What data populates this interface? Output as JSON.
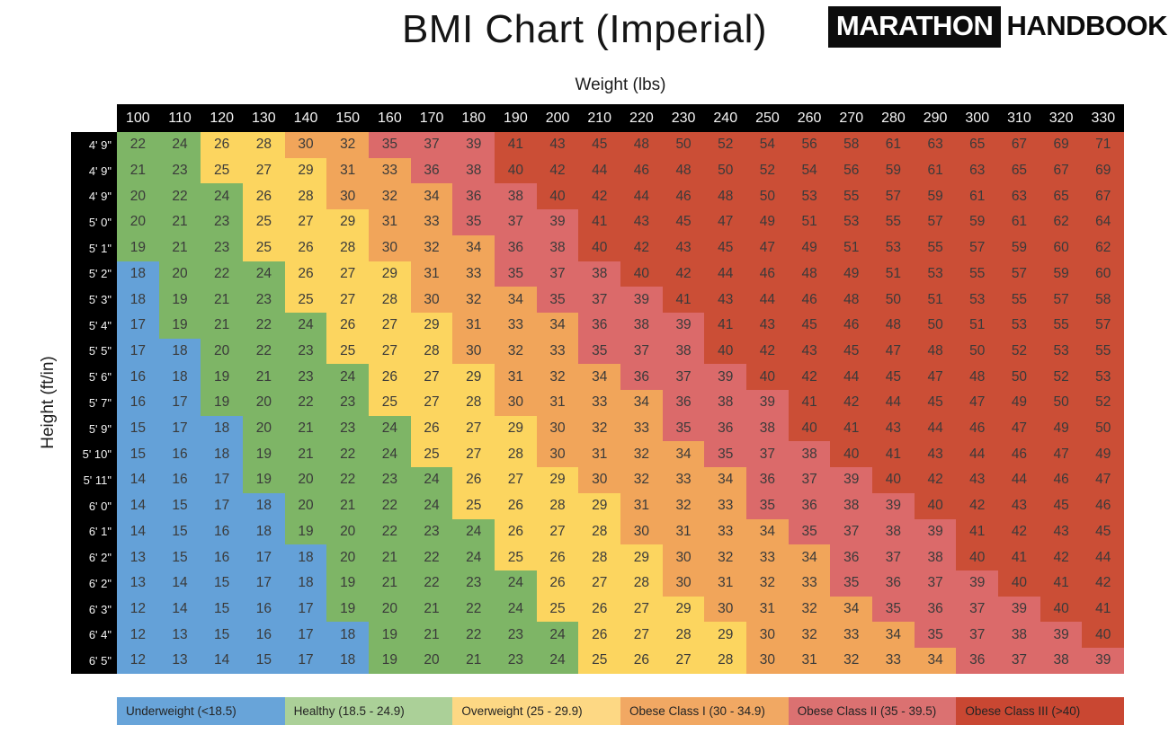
{
  "title": "BMI Chart (Imperial)",
  "logo": {
    "primary": "MARATHON",
    "secondary": "HANDBOOK"
  },
  "chart_data": {
    "type": "heatmap",
    "title": "BMI Chart (Imperial)",
    "xlabel": "Weight (lbs)",
    "ylabel": "Height (ft/in)",
    "weights_lbs": [
      100,
      110,
      120,
      130,
      140,
      150,
      160,
      170,
      180,
      190,
      200,
      210,
      220,
      230,
      240,
      250,
      260,
      270,
      280,
      290,
      300,
      310,
      320,
      330
    ],
    "heights": [
      "4' 9\"",
      "4' 9\"",
      "4' 9\"",
      "5' 0\"",
      "5' 1\"",
      "5' 2\"",
      "5' 3\"",
      "5' 4\"",
      "5' 5\"",
      "5' 6\"",
      "5' 7\"",
      "5' 9\"",
      "5' 10\"",
      "5' 11\"",
      "6' 0\"",
      "6' 1\"",
      "6' 2\"",
      "6' 2\"",
      "6' 3\"",
      "6' 4\"",
      "6' 5\""
    ],
    "values": [
      [
        22,
        24,
        26,
        28,
        30,
        32,
        35,
        37,
        39,
        41,
        43,
        45,
        48,
        50,
        52,
        54,
        56,
        58,
        61,
        63,
        65,
        67,
        69,
        71
      ],
      [
        21,
        23,
        25,
        27,
        29,
        31,
        33,
        36,
        38,
        40,
        42,
        44,
        46,
        48,
        50,
        52,
        54,
        56,
        59,
        61,
        63,
        65,
        67,
        69
      ],
      [
        20,
        22,
        24,
        26,
        28,
        30,
        32,
        34,
        36,
        38,
        40,
        42,
        44,
        46,
        48,
        50,
        53,
        55,
        57,
        59,
        61,
        63,
        65,
        67
      ],
      [
        20,
        21,
        23,
        25,
        27,
        29,
        31,
        33,
        35,
        37,
        39,
        41,
        43,
        45,
        47,
        49,
        51,
        53,
        55,
        57,
        59,
        61,
        62,
        64
      ],
      [
        19,
        21,
        23,
        25,
        26,
        28,
        30,
        32,
        34,
        36,
        38,
        40,
        42,
        43,
        45,
        47,
        49,
        51,
        53,
        55,
        57,
        59,
        60,
        62
      ],
      [
        18,
        20,
        22,
        24,
        26,
        27,
        29,
        31,
        33,
        35,
        37,
        38,
        40,
        42,
        44,
        46,
        48,
        49,
        51,
        53,
        55,
        57,
        59,
        60
      ],
      [
        18,
        19,
        21,
        23,
        25,
        27,
        28,
        30,
        32,
        34,
        35,
        37,
        39,
        41,
        43,
        44,
        46,
        48,
        50,
        51,
        53,
        55,
        57,
        58
      ],
      [
        17,
        19,
        21,
        22,
        24,
        26,
        27,
        29,
        31,
        33,
        34,
        36,
        38,
        39,
        41,
        43,
        45,
        46,
        48,
        50,
        51,
        53,
        55,
        57
      ],
      [
        17,
        18,
        20,
        22,
        23,
        25,
        27,
        28,
        30,
        32,
        33,
        35,
        37,
        38,
        40,
        42,
        43,
        45,
        47,
        48,
        50,
        52,
        53,
        55
      ],
      [
        16,
        18,
        19,
        21,
        23,
        24,
        26,
        27,
        29,
        31,
        32,
        34,
        36,
        37,
        39,
        40,
        42,
        44,
        45,
        47,
        48,
        50,
        52,
        53
      ],
      [
        16,
        17,
        19,
        20,
        22,
        23,
        25,
        27,
        28,
        30,
        31,
        33,
        34,
        36,
        38,
        39,
        41,
        42,
        44,
        45,
        47,
        49,
        50,
        52
      ],
      [
        15,
        17,
        18,
        20,
        21,
        23,
        24,
        26,
        27,
        29,
        30,
        32,
        33,
        35,
        36,
        38,
        40,
        41,
        43,
        44,
        46,
        47,
        49,
        50
      ],
      [
        15,
        16,
        18,
        19,
        21,
        22,
        24,
        25,
        27,
        28,
        30,
        31,
        32,
        34,
        35,
        37,
        38,
        40,
        41,
        43,
        44,
        46,
        47,
        49
      ],
      [
        14,
        16,
        17,
        19,
        20,
        22,
        23,
        24,
        26,
        27,
        29,
        30,
        32,
        33,
        34,
        36,
        37,
        39,
        40,
        42,
        43,
        44,
        46,
        47
      ],
      [
        14,
        15,
        17,
        18,
        20,
        21,
        22,
        24,
        25,
        26,
        28,
        29,
        31,
        32,
        33,
        35,
        36,
        38,
        39,
        40,
        42,
        43,
        45,
        46
      ],
      [
        14,
        15,
        16,
        18,
        19,
        20,
        22,
        23,
        24,
        26,
        27,
        28,
        30,
        31,
        33,
        34,
        35,
        37,
        38,
        39,
        41,
        42,
        43,
        45
      ],
      [
        13,
        15,
        16,
        17,
        18,
        20,
        21,
        22,
        24,
        25,
        26,
        28,
        29,
        30,
        32,
        33,
        34,
        36,
        37,
        38,
        40,
        41,
        42,
        44
      ],
      [
        13,
        14,
        15,
        17,
        18,
        19,
        21,
        22,
        23,
        24,
        26,
        27,
        28,
        30,
        31,
        32,
        33,
        35,
        36,
        37,
        39,
        40,
        41,
        42
      ],
      [
        12,
        14,
        15,
        16,
        17,
        19,
        20,
        21,
        22,
        24,
        25,
        26,
        27,
        29,
        30,
        31,
        32,
        34,
        35,
        36,
        37,
        39,
        40,
        41
      ],
      [
        12,
        13,
        15,
        16,
        17,
        18,
        19,
        21,
        22,
        23,
        24,
        26,
        27,
        28,
        29,
        30,
        32,
        33,
        34,
        35,
        37,
        38,
        39,
        40
      ],
      [
        12,
        13,
        14,
        15,
        17,
        18,
        19,
        20,
        21,
        23,
        24,
        25,
        26,
        27,
        28,
        30,
        31,
        32,
        33,
        34,
        36,
        37,
        38,
        39
      ]
    ],
    "legend": [
      {
        "label": "Underweight (<18.5)",
        "max_bmi": 18,
        "cell_color": "#64a1d8",
        "legend_color": "#68a4d9"
      },
      {
        "label": "Healthy (18.5 - 24.9)",
        "max_bmi": 24,
        "cell_color": "#7eb566",
        "legend_color": "#abd098"
      },
      {
        "label": "Overweight (25 - 29.9)",
        "max_bmi": 29,
        "cell_color": "#fcd55f",
        "legend_color": "#fdd884"
      },
      {
        "label": "Obese Class I (30 - 34.9)",
        "max_bmi": 34,
        "cell_color": "#f1a55a",
        "legend_color": "#f1a863"
      },
      {
        "label": "Obese Class II (35 - 39.5)",
        "max_bmi": 39,
        "cell_color": "#db6a6a",
        "legend_color": "#db7171"
      },
      {
        "label": "Obese Class III (>40)",
        "max_bmi": 999,
        "cell_color": "#cb4e36",
        "legend_color": "#c94732"
      }
    ],
    "legend_position": "bottom",
    "grid": false
  }
}
